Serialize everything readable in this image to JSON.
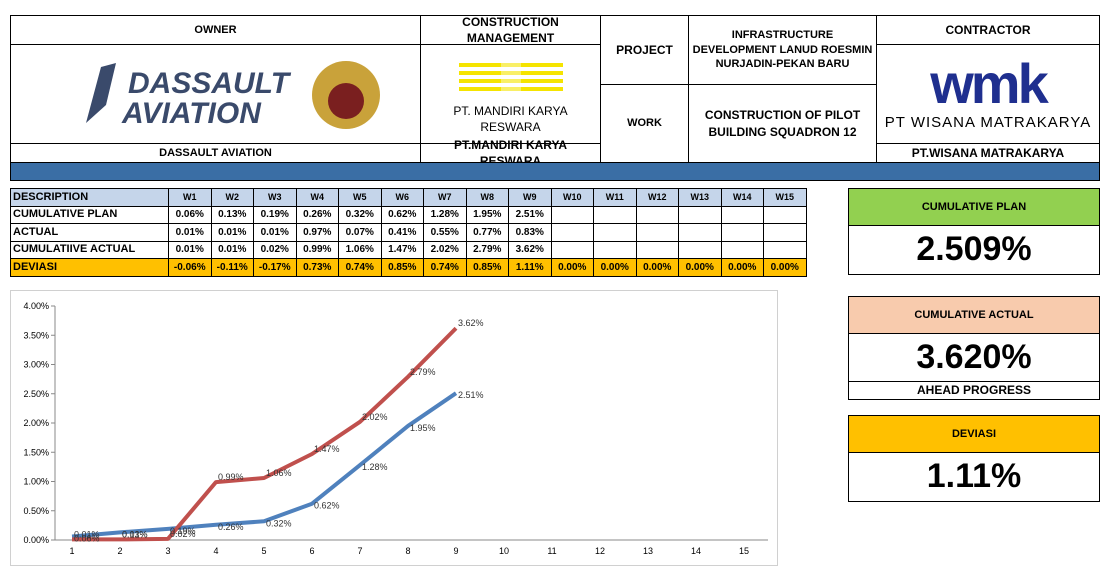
{
  "header": {
    "owner": {
      "title": "OWNER",
      "logo_lines": [
        "DASSAULT",
        "AVIATION"
      ],
      "footer": "DASSAULT AVIATION"
    },
    "construction_management": {
      "title": "CONSTRUCTION MANAGEMENT",
      "logo_caption": "PT. MANDIRI KARYA RESWARA",
      "footer": "PT.MANDIRI KARYA RESWARA"
    },
    "project": {
      "label": "PROJECT",
      "value": "INFRASTRUCTURE DEVELOPMENT LANUD ROESMIN NURJADIN-PEKAN BARU"
    },
    "work": {
      "label": "WORK",
      "value": "CONSTRUCTION OF PILOT BUILDING SQUADRON 12"
    },
    "contractor": {
      "title": "CONTRACTOR",
      "logo_text": "wmk",
      "logo_caption": "PT WISANA MATRAKARYA",
      "footer": "PT.WISANA MATRAKARYA"
    }
  },
  "table": {
    "header": [
      "DESCRIPTION",
      "W1",
      "W2",
      "W3",
      "W4",
      "W5",
      "W6",
      "W7",
      "W8",
      "W9",
      "W10",
      "W11",
      "W12",
      "W13",
      "W14",
      "W15"
    ],
    "rows": [
      [
        "CUMULATIVE PLAN",
        "0.06%",
        "0.13%",
        "0.19%",
        "0.26%",
        "0.32%",
        "0.62%",
        "1.28%",
        "1.95%",
        "2.51%"
      ],
      [
        "ACTUAL",
        "0.01%",
        "0.01%",
        "0.01%",
        "0.97%",
        "0.07%",
        "0.41%",
        "0.55%",
        "0.77%",
        "0.83%"
      ],
      [
        "CUMULATIIVE ACTUAL",
        "0.01%",
        "0.01%",
        "0.02%",
        "0.99%",
        "1.06%",
        "1.47%",
        "2.02%",
        "2.79%",
        "3.62%"
      ],
      [
        "DEVIASI",
        "-0.06%",
        "-0.11%",
        "-0.17%",
        "0.73%",
        "0.74%",
        "0.85%",
        "0.74%",
        "0.85%",
        "1.11%",
        "0.00%",
        "0.00%",
        "0.00%",
        "0.00%",
        "0.00%",
        "0.00%"
      ]
    ]
  },
  "kpis": [
    {
      "title": "CUMULATIVE PLAN",
      "value": "2.509%",
      "color": "#92d050"
    },
    {
      "title": "CUMULATIVE ACTUAL",
      "value": "3.620%",
      "note": "AHEAD PROGRESS",
      "color": "#f8cbad"
    },
    {
      "title": "DEVIASI",
      "value": "1.11%",
      "color": "#ffc000"
    }
  ],
  "chart_data": {
    "type": "line",
    "categories": [
      1,
      2,
      3,
      4,
      5,
      6,
      7,
      8,
      9,
      10,
      11,
      12,
      13,
      14,
      15
    ],
    "series": [
      {
        "color": "#4f81bd",
        "values": [
          0.06,
          0.13,
          0.19,
          0.26,
          0.32,
          0.62,
          1.28,
          1.95,
          2.51,
          null,
          null,
          null,
          null,
          null,
          null
        ],
        "value_labels": [
          "0.06%",
          "0.13%",
          "0.19%",
          "0.26%",
          "0.32%",
          "0.62%",
          "1.28%",
          "1.95%",
          "2.51%",
          null,
          null,
          null,
          null,
          null,
          null
        ]
      },
      {
        "color": "#c0504d",
        "values": [
          0.01,
          0.01,
          0.02,
          0.99,
          1.06,
          1.47,
          2.02,
          2.79,
          3.62,
          null,
          null,
          null,
          null,
          null,
          null
        ],
        "value_labels": [
          "0.01%",
          "0.01%",
          "0.02%",
          "0.99%",
          "1.06%",
          "1.47%",
          "2.02%",
          "2.79%",
          "3.62%",
          null,
          null,
          null,
          null,
          null,
          null
        ]
      }
    ],
    "ylim": [
      0,
      4
    ],
    "yticks": [
      {
        "value": 0,
        "label": "0.00%"
      },
      {
        "value": 0.5,
        "label": "0.50%"
      },
      {
        "value": 1,
        "label": "1.00%"
      },
      {
        "value": 1.5,
        "label": "1.50%"
      },
      {
        "value": 2,
        "label": "2.00%"
      },
      {
        "value": 2.5,
        "label": "2.50%"
      },
      {
        "value": 3,
        "label": "3.00%"
      },
      {
        "value": 3.5,
        "label": "3.50%"
      },
      {
        "value": 4,
        "label": "4.00%"
      }
    ]
  }
}
